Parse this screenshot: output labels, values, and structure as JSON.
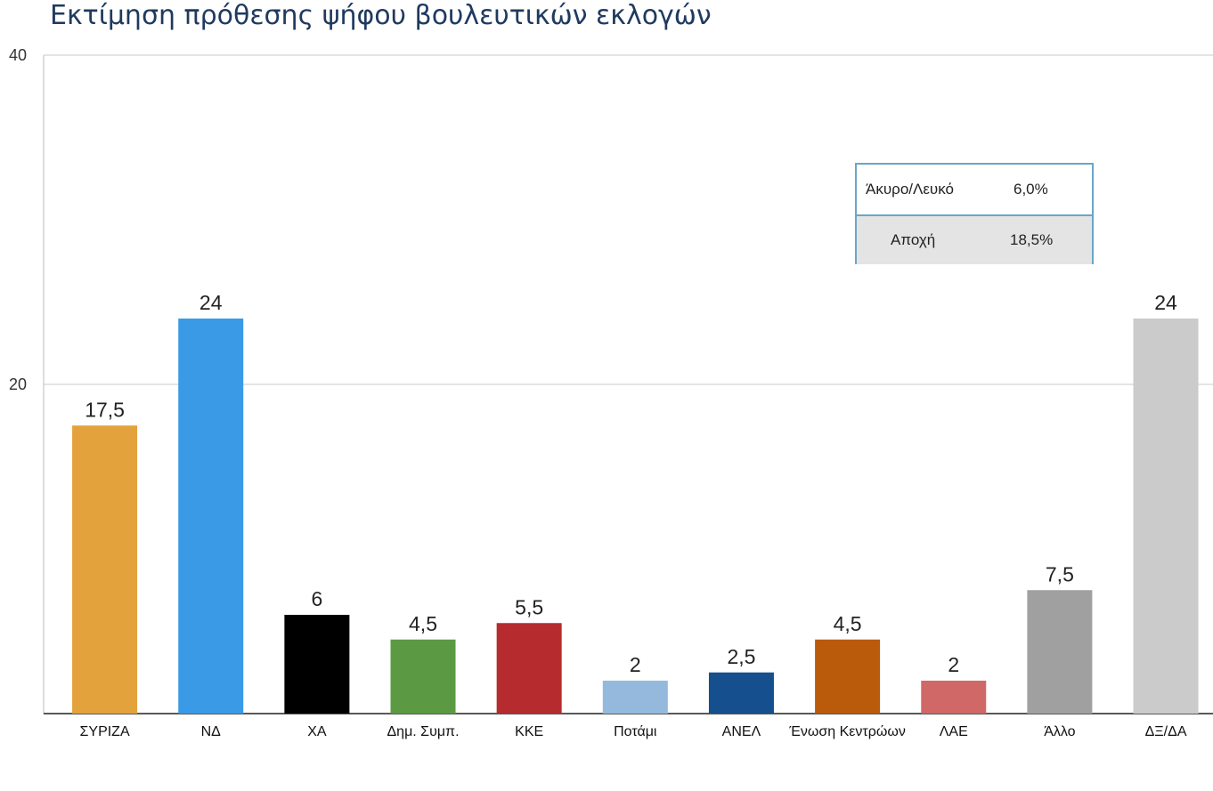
{
  "title": "Εκτίμηση πρόθεσης ψήφου βουλευτικών εκλογών",
  "chart_data": {
    "type": "bar",
    "title": "Εκτίμηση πρόθεσης ψήφου βουλευτικών εκλογών",
    "xlabel": "",
    "ylabel": "",
    "ylim": [
      0,
      40
    ],
    "yticks": [
      20,
      40
    ],
    "grid": true,
    "categories": [
      "ΣΥΡΙΖΑ",
      "ΝΔ",
      "ΧΑ",
      "Δημ. Συμπ.",
      "ΚΚΕ",
      "Ποτάμι",
      "ΑΝΕΛ",
      "Ένωση Κεντρώων",
      "ΛΑΕ",
      "Άλλο",
      "ΔΞ/ΔΑ"
    ],
    "values": [
      17.5,
      24,
      6,
      4.5,
      5.5,
      2,
      2.5,
      4.5,
      2,
      7.5,
      24
    ],
    "value_labels": [
      "17,5",
      "24",
      "6",
      "4,5",
      "5,5",
      "2",
      "2,5",
      "4,5",
      "2",
      "7,5",
      "24"
    ],
    "colors": [
      "#e3a23b",
      "#3a9ae6",
      "#000000",
      "#5b9a42",
      "#b52b2e",
      "#94b9dc",
      "#154f8e",
      "#ba5a0b",
      "#d06868",
      "#a0a0a0",
      "#cbcbcb"
    ]
  },
  "legend_table": {
    "rows": [
      {
        "label": "Άκυρο/Λευκό",
        "value": "6,0%"
      },
      {
        "label": "Αποχή",
        "value": "18,5%"
      }
    ],
    "border_color": "#6aa6c8",
    "shaded_row_color": "#e4e4e4"
  }
}
